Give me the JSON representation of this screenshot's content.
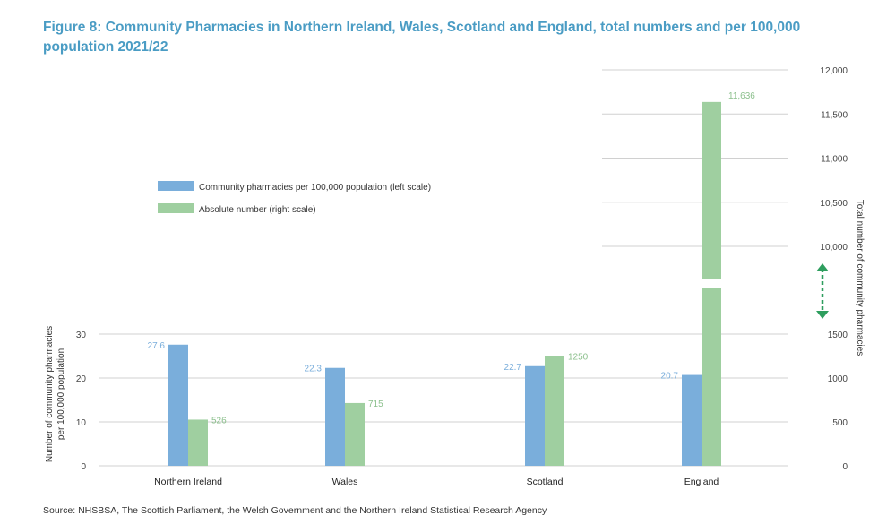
{
  "title": "Figure 8: Community Pharmacies in Northern Ireland, Wales, Scotland and England, total numbers and per 100,000 population 2021/22",
  "source": "Source: NHSBSA, The Scottish Parliament, the Welsh Government and the Northern Ireland Statistical Research Agency",
  "chart_data": {
    "type": "bar",
    "categories": [
      "Northern Ireland",
      "Wales",
      "Scotland",
      "England"
    ],
    "series": [
      {
        "name": "Community pharmacies per 100,000 population (left scale)",
        "axis": "left",
        "values": [
          27.6,
          22.3,
          22.7,
          20.7
        ],
        "labels": [
          "27.6",
          "22.3",
          "22.7",
          "20.7"
        ],
        "color": "#7aaedb"
      },
      {
        "name": "Absolute number (right scale)",
        "axis": "right",
        "values": [
          526,
          715,
          1250,
          11636
        ],
        "labels": [
          "526",
          "715",
          "1250",
          "11,636"
        ],
        "color": "#9fcfa0"
      }
    ],
    "left_axis": {
      "label": "Number of community pharmacies per 100,000 population",
      "ylim": [
        0,
        30
      ],
      "ticks": [
        "0",
        "10",
        "20",
        "30"
      ]
    },
    "right_axis": {
      "label": "Total number of community pharmacies",
      "broken": true,
      "lower_ticks": [
        "0",
        "500",
        "1000",
        "1500"
      ],
      "upper_ticks": [
        "10,000",
        "10,500",
        "11,000",
        "11,500",
        "12,000"
      ]
    },
    "legend_position": "upper-left",
    "grid": true,
    "colors": {
      "left_series": "#7aaedb",
      "right_series": "#9fcfa0",
      "break_arrow": "#2e9e5e",
      "title": "#4a9cc4"
    }
  }
}
